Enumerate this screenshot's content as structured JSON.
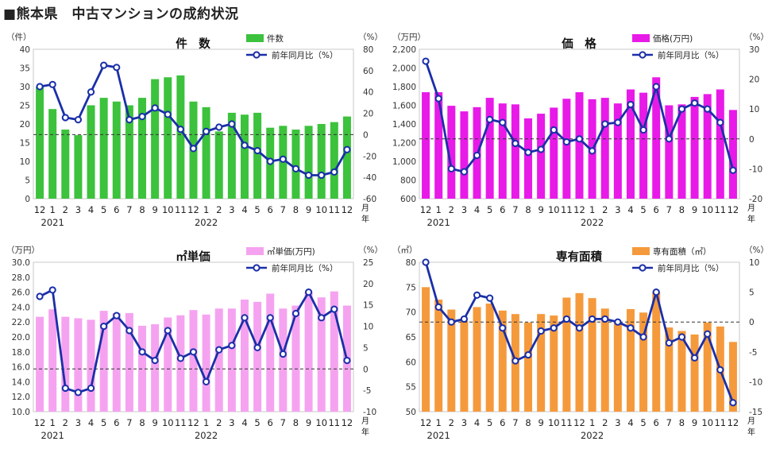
{
  "page": {
    "title": "■熊本県　中古マンションの成約状況"
  },
  "months": [
    "12",
    "1",
    "2",
    "3",
    "4",
    "5",
    "6",
    "7",
    "8",
    "9",
    "10",
    "11",
    "12",
    "1",
    "2",
    "3",
    "4",
    "5",
    "6",
    "7",
    "8",
    "9",
    "10",
    "11",
    "12"
  ],
  "year_labels": [
    {
      "label": "2021",
      "index": 1
    },
    {
      "label": "2022",
      "index": 13
    }
  ],
  "month_unit": "月",
  "year_unit": "年",
  "colors": {
    "line": "#1a2fa8",
    "marker_fill": "#ffffff"
  },
  "chart_data": [
    {
      "id": "count",
      "type": "bar+line",
      "title": "件　数",
      "left_unit": "（件）",
      "right_unit": "（%）",
      "bar_color": "#3cc23c",
      "legend": {
        "bar": "件数",
        "line": "前年同月比（%）"
      },
      "left_axis": {
        "min": 0,
        "max": 40,
        "step": 5,
        "decimals": 0
      },
      "right_axis": {
        "min": -60,
        "max": 80,
        "step": 20,
        "decimals": 0
      },
      "bar_values": [
        30,
        24,
        18.5,
        17,
        25,
        27,
        26,
        25,
        27,
        32,
        32.5,
        33,
        26,
        24.5,
        18,
        23,
        22.5,
        23,
        19,
        19.5,
        18.5,
        19.5,
        20,
        20.5,
        22
      ],
      "line_values": [
        45,
        47,
        16,
        14,
        40,
        65,
        63,
        14,
        17,
        25,
        19,
        5,
        -13,
        3,
        7,
        10,
        -10,
        -15,
        -25,
        -23,
        -32,
        -38,
        -38,
        -35,
        -14
      ]
    },
    {
      "id": "price",
      "type": "bar+line",
      "title": "価　格",
      "left_unit": "（万円）",
      "right_unit": "（%）",
      "bar_color": "#e81ae8",
      "legend": {
        "bar": "価格(万円)",
        "line": "前年同月比（%）"
      },
      "left_axis": {
        "min": 600,
        "max": 2200,
        "step": 200,
        "decimals": 0,
        "thousands": true
      },
      "right_axis": {
        "min": -20,
        "max": 30,
        "step": 10,
        "decimals": 0
      },
      "bar_values": [
        1740,
        1740,
        1595,
        1535,
        1580,
        1680,
        1620,
        1610,
        1460,
        1510,
        1575,
        1670,
        1740,
        1665,
        1680,
        1620,
        1770,
        1735,
        1900,
        1600,
        1610,
        1690,
        1720,
        1770,
        1550
      ],
      "line_values": [
        26,
        13.5,
        -10,
        -11,
        -5.5,
        6.5,
        5.5,
        -1.5,
        -4.5,
        -3.5,
        3,
        -1,
        0,
        -4,
        5,
        5.5,
        11.5,
        3,
        17.5,
        0,
        10,
        12,
        10,
        5.5,
        -10.5
      ]
    },
    {
      "id": "unit_price",
      "type": "bar+line",
      "title": "㎡単価",
      "left_unit": "（万円）",
      "right_unit": "（%）",
      "bar_color": "#f5a3f0",
      "legend": {
        "bar": "㎡単価(万円)",
        "line": "前年同月比（%）"
      },
      "left_axis": {
        "min": 10,
        "max": 30,
        "step": 2,
        "decimals": 1
      },
      "right_axis": {
        "min": -10,
        "max": 25,
        "step": 5,
        "decimals": 0
      },
      "bar_values": [
        22.7,
        23.7,
        22.7,
        22.5,
        22.3,
        23.5,
        23.2,
        23.2,
        21.5,
        21.7,
        22.6,
        22.9,
        23.6,
        23.0,
        23.8,
        23.8,
        25.0,
        24.7,
        25.8,
        23.8,
        24.2,
        26.0,
        25.3,
        26.1,
        24.2
      ],
      "line_values": [
        17,
        18.5,
        -4.5,
        -5.5,
        -4.5,
        10,
        12.5,
        9,
        4,
        2,
        9,
        2.5,
        4,
        -3,
        4.5,
        5.5,
        12,
        5,
        12,
        3.5,
        13,
        18,
        12,
        14,
        2
      ]
    },
    {
      "id": "area",
      "type": "bar+line",
      "title": "専有面積",
      "left_unit": "（㎡）",
      "right_unit": "（%）",
      "bar_color": "#f59a3c",
      "legend": {
        "bar": "専有面積（㎡）",
        "line": "前年同月比（%）"
      },
      "left_axis": {
        "min": 50,
        "max": 80,
        "step": 5,
        "decimals": 0
      },
      "right_axis": {
        "min": -15,
        "max": 10,
        "step": 5,
        "decimals": 0
      },
      "bar_values": [
        75,
        72.5,
        70.5,
        68.2,
        71,
        71.7,
        70.3,
        69.6,
        67.9,
        69.6,
        69.3,
        72.9,
        73.8,
        72.8,
        70.7,
        67.9,
        70.6,
        69.9,
        74,
        66.9,
        66.2,
        65.5,
        67.9,
        67.1,
        64
      ],
      "line_values": [
        10,
        2.5,
        0,
        0.5,
        4.5,
        4,
        -1,
        -6.5,
        -5.5,
        -1.5,
        -1,
        0.5,
        -1,
        0.5,
        0.5,
        0,
        -1,
        -2.5,
        5,
        -3.5,
        -2.5,
        -6,
        -2,
        -8,
        -13.5
      ]
    }
  ]
}
